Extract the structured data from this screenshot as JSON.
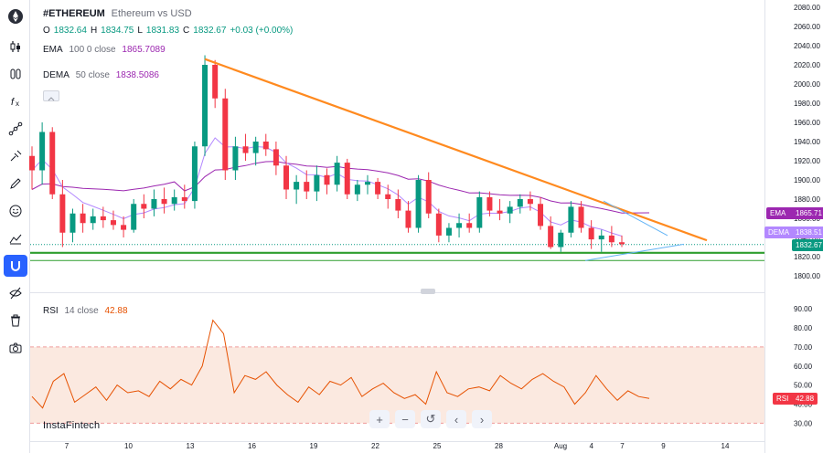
{
  "header": {
    "symbol": "#ETHEREUM",
    "description": "Ethereum vs USD",
    "ohlc": [
      {
        "k": "O",
        "v": "1832.64"
      },
      {
        "k": "H",
        "v": "1834.75"
      },
      {
        "k": "L",
        "v": "1831.83"
      },
      {
        "k": "C",
        "v": "1832.67"
      }
    ],
    "change": "+0.03 (+0.00%)"
  },
  "indicators": {
    "ema": {
      "name": "EMA",
      "params": "100 0 close",
      "value": "1865.7089"
    },
    "dema": {
      "name": "DEMA",
      "params": "50 close",
      "value": "1838.5086"
    },
    "rsi": {
      "name": "RSI",
      "params": "14 close",
      "value": "42.88"
    }
  },
  "price_tags": {
    "ema": {
      "label": "EMA",
      "value": "1865.71"
    },
    "dema": {
      "label": "DEMA",
      "value": "1838.51"
    },
    "last": {
      "value": "1832.67"
    },
    "rsi": {
      "label": "RSI",
      "value": "42.88"
    }
  },
  "watermark": "InstaFintech",
  "nav_buttons": [
    "+",
    "−",
    "↺",
    "‹",
    "›"
  ],
  "toolbar": [
    "candles-icon",
    "bars-icon",
    "formula-icon",
    "trend-line-icon",
    "brush-icon",
    "pencil-icon",
    "smile-icon",
    "measure-icon",
    "magnet-icon",
    "eye-off-icon",
    "trash-icon",
    "camera-icon"
  ],
  "colors": {
    "up": "#089981",
    "down": "#f23645",
    "ema": "#9c27b0",
    "dema": "#b388ff",
    "trend": "#ff8a1f",
    "support": "#2e9e2e",
    "rsi": "#e65100",
    "rsi_band": "#fbe9e0",
    "triangle": "#64b5f6"
  },
  "chart_data": [
    {
      "type": "candlestick",
      "title": "#ETHEREUM",
      "ylim": [
        1792,
        2082
      ],
      "y_ticks": [
        "2080.00",
        "2060.00",
        "2040.00",
        "2020.00",
        "2000.00",
        "1980.00",
        "1960.00",
        "1940.00",
        "1920.00",
        "1900.00",
        "1880.00",
        "1860.00",
        "1840.00",
        "1820.00",
        "1800.00"
      ],
      "x_ticks": [
        "7",
        "10",
        "13",
        "16",
        "19",
        "22",
        "25",
        "28",
        "Aug",
        "4",
        "7",
        "9",
        "14"
      ],
      "x_tick_pos": [
        3,
        6,
        9,
        12,
        15,
        18,
        21,
        24,
        27,
        28.5,
        30,
        32,
        35
      ],
      "ohlc": [
        [
          1925,
          1935,
          1890,
          1910
        ],
        [
          1910,
          1960,
          1895,
          1950
        ],
        [
          1950,
          1955,
          1880,
          1885
        ],
        [
          1885,
          1900,
          1830,
          1845
        ],
        [
          1845,
          1870,
          1835,
          1865
        ],
        [
          1865,
          1875,
          1845,
          1855
        ],
        [
          1855,
          1870,
          1848,
          1862
        ],
        [
          1862,
          1872,
          1850,
          1858
        ],
        [
          1858,
          1868,
          1848,
          1853
        ],
        [
          1853,
          1862,
          1840,
          1848
        ],
        [
          1848,
          1880,
          1845,
          1875
        ],
        [
          1875,
          1885,
          1860,
          1870
        ],
        [
          1870,
          1890,
          1862,
          1880
        ],
        [
          1880,
          1892,
          1865,
          1875
        ],
        [
          1875,
          1890,
          1868,
          1882
        ],
        [
          1882,
          1895,
          1870,
          1878
        ],
        [
          1878,
          1940,
          1870,
          1935
        ],
        [
          1935,
          2030,
          1925,
          2020
        ],
        [
          2020,
          2025,
          1975,
          1985
        ],
        [
          1985,
          1995,
          1900,
          1910
        ],
        [
          1910,
          1945,
          1900,
          1935
        ],
        [
          1935,
          1948,
          1920,
          1928
        ],
        [
          1928,
          1945,
          1915,
          1940
        ],
        [
          1940,
          1948,
          1925,
          1932
        ],
        [
          1932,
          1940,
          1905,
          1915
        ],
        [
          1915,
          1925,
          1880,
          1890
        ],
        [
          1890,
          1905,
          1875,
          1898
        ],
        [
          1898,
          1910,
          1880,
          1888
        ],
        [
          1888,
          1915,
          1878,
          1905
        ],
        [
          1905,
          1912,
          1885,
          1895
        ],
        [
          1895,
          1925,
          1888,
          1918
        ],
        [
          1918,
          1922,
          1880,
          1885
        ],
        [
          1885,
          1900,
          1878,
          1895
        ],
        [
          1895,
          1905,
          1885,
          1898
        ],
        [
          1898,
          1902,
          1880,
          1885
        ],
        [
          1885,
          1895,
          1870,
          1880
        ],
        [
          1880,
          1890,
          1860,
          1868
        ],
        [
          1868,
          1878,
          1845,
          1850
        ],
        [
          1850,
          1905,
          1845,
          1900
        ],
        [
          1900,
          1908,
          1860,
          1865
        ],
        [
          1865,
          1870,
          1835,
          1842
        ],
        [
          1842,
          1855,
          1835,
          1850
        ],
        [
          1850,
          1865,
          1840,
          1855
        ],
        [
          1855,
          1865,
          1845,
          1850
        ],
        [
          1850,
          1888,
          1845,
          1882
        ],
        [
          1882,
          1888,
          1862,
          1868
        ],
        [
          1868,
          1880,
          1858,
          1865
        ],
        [
          1865,
          1878,
          1855,
          1872
        ],
        [
          1872,
          1885,
          1865,
          1880
        ],
        [
          1880,
          1888,
          1868,
          1875
        ],
        [
          1875,
          1882,
          1848,
          1852
        ],
        [
          1852,
          1862,
          1828,
          1830
        ],
        [
          1830,
          1848,
          1825,
          1845
        ],
        [
          1845,
          1878,
          1840,
          1872
        ],
        [
          1872,
          1878,
          1845,
          1850
        ],
        [
          1850,
          1858,
          1828,
          1838
        ],
        [
          1838,
          1848,
          1825,
          1842
        ],
        [
          1842,
          1852,
          1830,
          1835
        ],
        [
          1835,
          1842,
          1830,
          1833
        ]
      ]
    },
    {
      "type": "line",
      "title": "RSI 14 close",
      "ylim": [
        26,
        95
      ],
      "y_ticks": [
        "90.00",
        "80.00",
        "70.00",
        "60.00",
        "50.00",
        "40.00",
        "30.00"
      ],
      "levels": [
        70,
        30
      ],
      "values": [
        44,
        38,
        52,
        56,
        41,
        45,
        49,
        42,
        50,
        46,
        47,
        44,
        52,
        48,
        53,
        50,
        60,
        84,
        77,
        46,
        55,
        53,
        57,
        50,
        45,
        41,
        49,
        45,
        52,
        50,
        54,
        44,
        48,
        51,
        46,
        43,
        45,
        40,
        57,
        46,
        44,
        48,
        49,
        47,
        55,
        51,
        48,
        53,
        56,
        52,
        49,
        40,
        46,
        55,
        48,
        42,
        47,
        44,
        43
      ]
    }
  ]
}
